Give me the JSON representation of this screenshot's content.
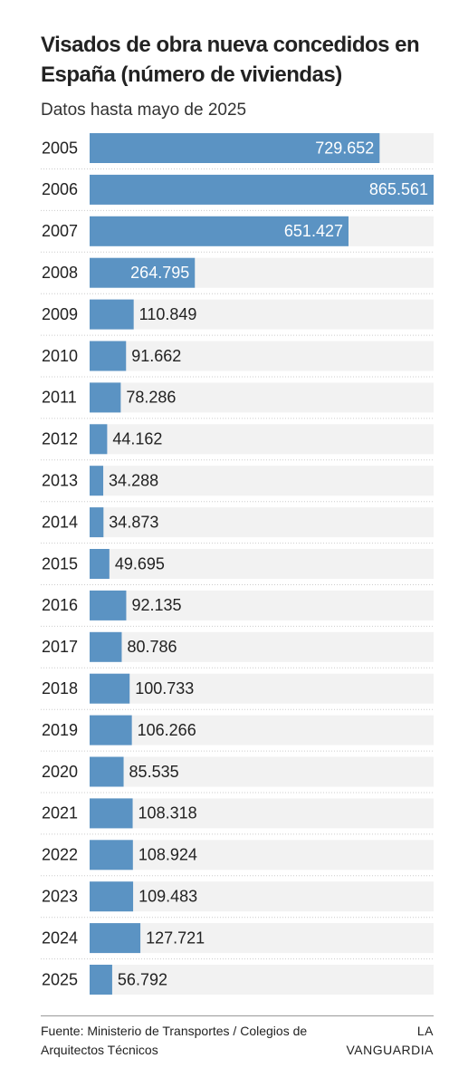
{
  "chart_data": {
    "type": "bar",
    "orientation": "horizontal",
    "title": "Visados de obra nueva concedidos en España (número de viviendas)",
    "subtitle": "Datos hasta mayo de 2025",
    "categories": [
      "2005",
      "2006",
      "2007",
      "2008",
      "2009",
      "2010",
      "2011",
      "2012",
      "2013",
      "2014",
      "2015",
      "2016",
      "2017",
      "2018",
      "2019",
      "2020",
      "2021",
      "2022",
      "2023",
      "2024",
      "2025"
    ],
    "values": [
      729652,
      865561,
      651427,
      264795,
      110849,
      91662,
      78286,
      44162,
      34288,
      34873,
      49695,
      92135,
      80786,
      100733,
      106266,
      85535,
      108318,
      108924,
      109483,
      127721,
      56792
    ],
    "value_labels": [
      "729.652",
      "865.561",
      "651.427",
      "264.795",
      "110.849",
      "91.662",
      "78.286",
      "44.162",
      "34.288",
      "34.873",
      "49.695",
      "92.135",
      "80.786",
      "100.733",
      "106.266",
      "85.535",
      "108.318",
      "108.924",
      "109.483",
      "127.721",
      "56.792"
    ],
    "color": "#5b93c3",
    "source": "Fuente: Ministerio de Transportes / Colegios de Arquitectos Técnicos",
    "logo": "LA VANGUARDIA"
  }
}
